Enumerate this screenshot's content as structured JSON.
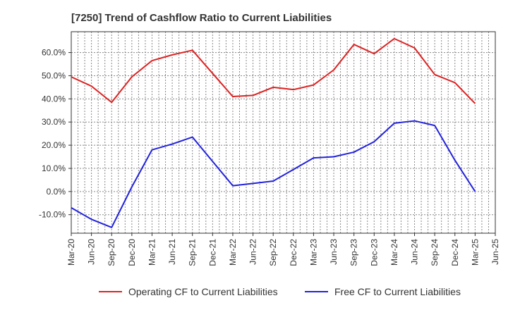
{
  "chart_data": {
    "type": "line",
    "title": "[7250]  Trend of Cashflow Ratio to Current Liabilities",
    "xlabel": "",
    "ylabel": "",
    "categories": [
      "Mar-20",
      "Jun-20",
      "Sep-20",
      "Dec-20",
      "Mar-21",
      "Jun-21",
      "Sep-21",
      "Dec-21",
      "Mar-22",
      "Jun-22",
      "Sep-22",
      "Dec-22",
      "Mar-23",
      "Jun-23",
      "Sep-23",
      "Dec-23",
      "Mar-24",
      "Jun-24",
      "Sep-24",
      "Dec-24",
      "Mar-25",
      "Jun-25"
    ],
    "y_ticks": [
      "-10.0%",
      "0.0%",
      "10.0%",
      "20.0%",
      "30.0%",
      "40.0%",
      "50.0%",
      "60.0%"
    ],
    "ylim": [
      -18,
      69
    ],
    "grid": true,
    "legend_position": "bottom",
    "series": [
      {
        "name": "Operating CF to Current Liabilities",
        "color": "#dd2222",
        "values": [
          49.5,
          45.5,
          38.5,
          49.5,
          56.5,
          59.0,
          61.0,
          51.0,
          41.0,
          41.5,
          45.0,
          44.0,
          46.0,
          52.5,
          63.5,
          59.5,
          66.0,
          62.0,
          50.5,
          47.0,
          38.0,
          null
        ]
      },
      {
        "name": "Free CF to Current Liabilities",
        "color": "#2222dd",
        "values": [
          -7.0,
          -12.0,
          -15.5,
          2.0,
          18.0,
          20.5,
          23.5,
          13.0,
          2.5,
          3.5,
          4.5,
          9.5,
          14.5,
          15.0,
          17.0,
          21.5,
          29.5,
          30.5,
          28.5,
          13.5,
          0.0,
          null
        ]
      }
    ]
  }
}
